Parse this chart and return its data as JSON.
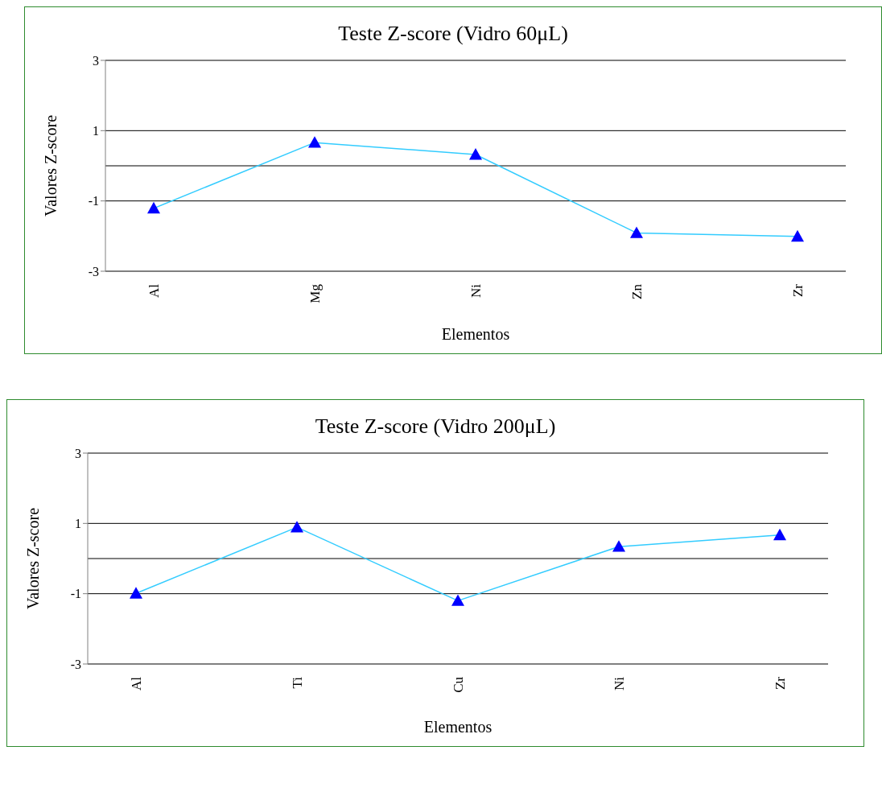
{
  "chart_data": [
    {
      "type": "line",
      "title": "Teste Z-score (Vidro 60μL)",
      "xlabel": "Elementos",
      "ylabel": "Valores Z-score",
      "categories": [
        "Al",
        "Mg",
        "Ni",
        "Zn",
        "Zr"
      ],
      "series": [
        {
          "color": "#33ccff",
          "colors": [
            "#0000ff",
            "#0000ff",
            "#0000ff",
            "#0000ff",
            "#0000ff"
          ],
          "values": [
            -1.21,
            0.66,
            0.32,
            -1.91,
            -2.01
          ]
        }
      ],
      "ylim": [
        -3,
        3
      ],
      "yticks": [
        -3,
        -1,
        1,
        3
      ],
      "grid": "y",
      "ref_lines": [
        {
          "axis": "y",
          "value": 0,
          "color": "#000000"
        }
      ],
      "marker": "triangle"
    },
    {
      "type": "line",
      "title": "Teste Z-score (Vidro 200μL)",
      "xlabel": "Elementos",
      "ylabel": "Valores Z-score",
      "categories": [
        "Al",
        "Ti",
        "Cu",
        "Ni",
        "Zr"
      ],
      "series": [
        {
          "color": "#33ccff",
          "colors": [
            "#0000ff",
            "#0000ff",
            "#0000ff",
            "#0000ff",
            "#0000ff"
          ],
          "values": [
            -0.99,
            0.89,
            -1.2,
            0.34,
            0.67
          ]
        }
      ],
      "ylim": [
        -3,
        3
      ],
      "yticks": [
        -3,
        -1,
        1,
        3
      ],
      "grid": "y",
      "ref_lines": [
        {
          "axis": "y",
          "value": 0,
          "color": "#000000"
        }
      ],
      "marker": "triangle"
    }
  ]
}
